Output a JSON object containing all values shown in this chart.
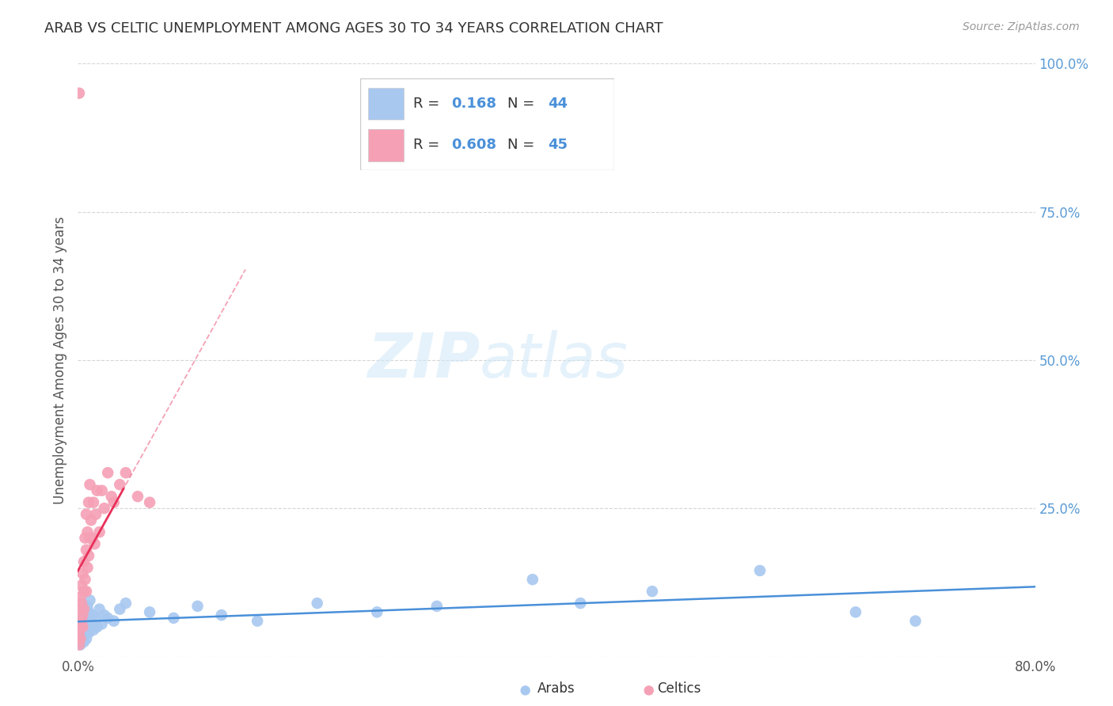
{
  "title": "ARAB VS CELTIC UNEMPLOYMENT AMONG AGES 30 TO 34 YEARS CORRELATION CHART",
  "source": "Source: ZipAtlas.com",
  "ylabel": "Unemployment Among Ages 30 to 34 years",
  "xlim": [
    0.0,
    0.8
  ],
  "ylim": [
    0.0,
    1.0
  ],
  "yticks": [
    0.0,
    0.25,
    0.5,
    0.75,
    1.0
  ],
  "xticks": [
    0.0,
    0.1,
    0.2,
    0.3,
    0.4,
    0.5,
    0.6,
    0.7,
    0.8
  ],
  "watermark_zip": "ZIP",
  "watermark_atlas": "atlas",
  "arab_R": 0.168,
  "arab_N": 44,
  "celtic_R": 0.608,
  "celtic_N": 45,
  "arab_color": "#a8c8f0",
  "celtic_color": "#f5a0b5",
  "arab_line_color": "#4a90d9",
  "celtic_line_color": "#e8305a",
  "legend_box_edge": "#cccccc",
  "background_color": "#ffffff",
  "grid_color": "#cccccc",
  "ytick_color": "#5b9bd5",
  "title_color": "#333333",
  "source_color": "#999999",
  "ylabel_color": "#555555",
  "arab_x": [
    0.002,
    0.003,
    0.003,
    0.004,
    0.004,
    0.005,
    0.005,
    0.005,
    0.006,
    0.006,
    0.007,
    0.007,
    0.008,
    0.008,
    0.009,
    0.009,
    0.01,
    0.01,
    0.011,
    0.012,
    0.013,
    0.015,
    0.016,
    0.018,
    0.02,
    0.022,
    0.025,
    0.03,
    0.035,
    0.04,
    0.06,
    0.08,
    0.1,
    0.12,
    0.15,
    0.2,
    0.25,
    0.3,
    0.38,
    0.42,
    0.48,
    0.57,
    0.65,
    0.7
  ],
  "arab_y": [
    0.02,
    0.03,
    0.05,
    0.035,
    0.06,
    0.045,
    0.025,
    0.07,
    0.04,
    0.08,
    0.03,
    0.065,
    0.05,
    0.085,
    0.04,
    0.075,
    0.06,
    0.095,
    0.055,
    0.07,
    0.045,
    0.065,
    0.05,
    0.08,
    0.055,
    0.07,
    0.065,
    0.06,
    0.08,
    0.09,
    0.075,
    0.065,
    0.085,
    0.07,
    0.06,
    0.09,
    0.075,
    0.085,
    0.13,
    0.09,
    0.11,
    0.145,
    0.075,
    0.06
  ],
  "celtic_x": [
    0.001,
    0.001,
    0.001,
    0.001,
    0.002,
    0.002,
    0.002,
    0.002,
    0.003,
    0.003,
    0.003,
    0.004,
    0.004,
    0.004,
    0.005,
    0.005,
    0.005,
    0.006,
    0.006,
    0.007,
    0.007,
    0.007,
    0.008,
    0.008,
    0.009,
    0.009,
    0.01,
    0.01,
    0.011,
    0.012,
    0.013,
    0.014,
    0.015,
    0.016,
    0.018,
    0.02,
    0.022,
    0.025,
    0.028,
    0.03,
    0.035,
    0.04,
    0.05,
    0.06,
    0.001
  ],
  "celtic_y": [
    0.02,
    0.04,
    0.06,
    0.03,
    0.05,
    0.08,
    0.03,
    0.1,
    0.06,
    0.09,
    0.12,
    0.07,
    0.14,
    0.05,
    0.11,
    0.16,
    0.08,
    0.13,
    0.2,
    0.11,
    0.18,
    0.24,
    0.15,
    0.21,
    0.17,
    0.26,
    0.2,
    0.29,
    0.23,
    0.2,
    0.26,
    0.19,
    0.24,
    0.28,
    0.21,
    0.28,
    0.25,
    0.31,
    0.27,
    0.26,
    0.29,
    0.31,
    0.27,
    0.26,
    0.95
  ]
}
